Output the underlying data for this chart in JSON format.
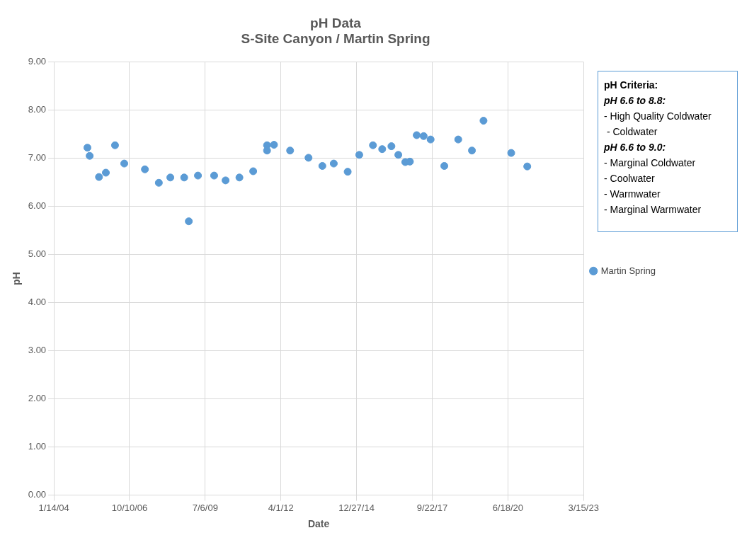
{
  "chart_data": {
    "type": "scatter",
    "title": "pH Data",
    "subtitle": "S-Site Canyon / Martin Spring",
    "xlabel": "Date",
    "ylabel": "pH",
    "x": [
      "2005-04",
      "2005-05",
      "2005-09",
      "2005-12",
      "2006-04",
      "2006-08",
      "2007-05",
      "2007-11",
      "2008-04",
      "2008-10",
      "2008-12",
      "2009-04",
      "2009-11",
      "2010-04",
      "2010-10",
      "2011-04",
      "2011-10",
      "2011-10",
      "2012-01",
      "2012-08",
      "2013-04",
      "2013-10",
      "2014-03",
      "2014-09",
      "2015-02",
      "2015-08",
      "2015-12",
      "2016-04",
      "2016-07",
      "2016-10",
      "2016-12",
      "2017-03",
      "2017-06",
      "2017-09",
      "2018-03",
      "2018-09",
      "2019-03",
      "2019-08",
      "2020-08",
      "2021-03"
    ],
    "series": [
      {
        "name": "Martin Spring",
        "color": "#5b9bd5",
        "values": [
          7.22,
          7.05,
          6.61,
          6.7,
          7.27,
          6.89,
          6.77,
          6.49,
          6.6,
          6.6,
          5.69,
          6.64,
          6.64,
          6.54,
          6.6,
          6.73,
          7.27,
          7.16,
          7.28,
          7.16,
          7.01,
          6.84,
          6.89,
          6.72,
          7.07,
          7.27,
          7.19,
          7.25,
          7.07,
          6.92,
          6.93,
          7.48,
          7.46,
          7.39,
          6.84,
          7.39,
          7.16,
          7.78,
          7.11,
          6.83
        ]
      }
    ],
    "xlim": [
      "2004-01-14",
      "2023-03-15"
    ],
    "xticks": [
      {
        "value": "2004-01-14",
        "label": "1/14/04"
      },
      {
        "value": "2006-10-10",
        "label": "10/10/06"
      },
      {
        "value": "2009-07-06",
        "label": "7/6/09"
      },
      {
        "value": "2012-04-01",
        "label": "4/1/12"
      },
      {
        "value": "2014-12-27",
        "label": "12/27/14"
      },
      {
        "value": "2017-09-22",
        "label": "9/22/17"
      },
      {
        "value": "2020-06-18",
        "label": "6/18/20"
      },
      {
        "value": "2023-03-15",
        "label": "3/15/23"
      }
    ],
    "ylim": [
      0,
      9
    ],
    "yticks": [
      {
        "value": 0,
        "label": "0.00"
      },
      {
        "value": 1,
        "label": "1.00"
      },
      {
        "value": 2,
        "label": "2.00"
      },
      {
        "value": 3,
        "label": "3.00"
      },
      {
        "value": 4,
        "label": "4.00"
      },
      {
        "value": 5,
        "label": "5.00"
      },
      {
        "value": 6,
        "label": "6.00"
      },
      {
        "value": 7,
        "label": "7.00"
      },
      {
        "value": 8,
        "label": "8.00"
      },
      {
        "value": 9,
        "label": "9.00"
      }
    ],
    "grid": true,
    "legend": "right",
    "marker": "circle",
    "annotations": [
      "pH Criteria:",
      "pH 6.6 to 8.8:",
      "- High Quality Coldwater",
      " - Coldwater",
      "pH 6.6 to 9.0:",
      "- Marginal Coldwater",
      "- Coolwater",
      "- Warmwater",
      "- Marginal Warmwater"
    ]
  }
}
